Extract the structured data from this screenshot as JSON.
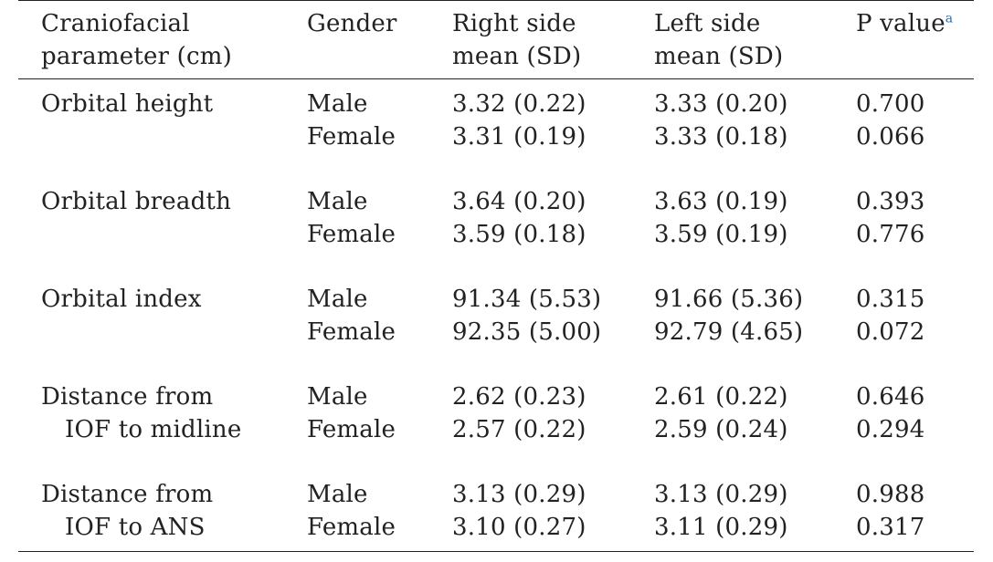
{
  "header": {
    "col1": [
      "Craniofacial",
      "parameter (cm)"
    ],
    "col2": "Gender",
    "col3": [
      "Right side",
      "mean (SD)"
    ],
    "col4": [
      "Left side",
      "mean (SD)"
    ],
    "col5": "P value",
    "col5_sup": "a"
  },
  "rows": [
    {
      "parameter": [
        "Orbital height"
      ],
      "genders": [
        "Male",
        "Female"
      ],
      "right": [
        "3.32 (0.22)",
        "3.31 (0.19)"
      ],
      "left": [
        "3.33 (0.20)",
        "3.33 (0.18)"
      ],
      "p": [
        "0.700",
        "0.066"
      ]
    },
    {
      "parameter": [
        "Orbital breadth"
      ],
      "genders": [
        "Male",
        "Female"
      ],
      "right": [
        "3.64 (0.20)",
        "3.59 (0.18)"
      ],
      "left": [
        "3.63 (0.19)",
        "3.59 (0.19)"
      ],
      "p": [
        "0.393",
        "0.776"
      ]
    },
    {
      "parameter": [
        "Orbital index"
      ],
      "genders": [
        "Male",
        "Female"
      ],
      "right": [
        "91.34 (5.53)",
        "92.35 (5.00)"
      ],
      "left": [
        "91.66 (5.36)",
        "92.79 (4.65)"
      ],
      "p": [
        "0.315",
        "0.072"
      ]
    },
    {
      "parameter": [
        "Distance from",
        "IOF to midline"
      ],
      "genders": [
        "Male",
        "Female"
      ],
      "right": [
        "2.62 (0.23)",
        "2.57 (0.22)"
      ],
      "left": [
        "2.61 (0.22)",
        "2.59 (0.24)"
      ],
      "p": [
        "0.646",
        "0.294"
      ]
    },
    {
      "parameter": [
        "Distance from",
        "IOF to ANS"
      ],
      "genders": [
        "Male",
        "Female"
      ],
      "right": [
        "3.13 (0.29)",
        "3.10 (0.27)"
      ],
      "left": [
        "3.13 (0.29)",
        "3.11 (0.29)"
      ],
      "p": [
        "0.988",
        "0.317"
      ]
    }
  ]
}
